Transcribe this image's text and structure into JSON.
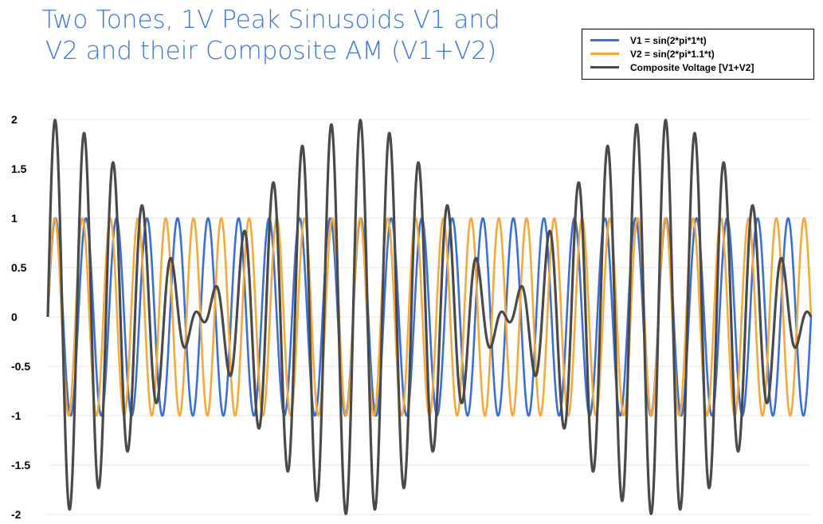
{
  "chart_data": {
    "type": "line",
    "title": [
      "Two Tones, 1V Peak Sinusoids V1 and",
      "V2 and their Composite AM (V1+V2)"
    ],
    "xlabel": "",
    "ylabel": "",
    "x_range": [
      0,
      25
    ],
    "ylim": [
      -2,
      2
    ],
    "yticks": [
      "2",
      "1.5",
      "1",
      "0.5",
      "0",
      "-0.5",
      "-1",
      "-1.5",
      "-2"
    ],
    "grid": true,
    "legend_position": "top-right",
    "series": [
      {
        "name": "V1 = sin(2*pi*1*t)",
        "color": "#3b6fd6",
        "frequency": 1,
        "amplitude": 1
      },
      {
        "name": "V2 = sin(2*pi*1.1*t)",
        "color": "#f5a93a",
        "frequency": 1.1,
        "amplitude": 1
      },
      {
        "name": "Composite Voltage [V1+V2]",
        "color": "#4a4a4a",
        "formula": "V1+V2"
      }
    ]
  }
}
